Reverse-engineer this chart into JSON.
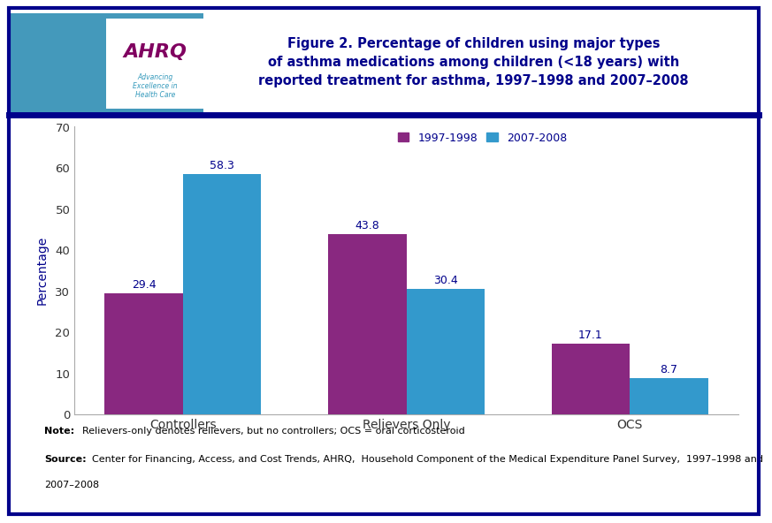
{
  "title": "Figure 2. Percentage of children using major types\nof asthma medications among children (<18 years) with\nreported treatment for asthma, 1997–1998 and 2007–2008",
  "categories": [
    "Controllers",
    "Relievers Only",
    "OCS"
  ],
  "series": [
    {
      "label": "1997-1998",
      "values": [
        29.4,
        43.8,
        17.1
      ],
      "color": "#892880"
    },
    {
      "label": "2007-2008",
      "values": [
        58.3,
        30.4,
        8.7
      ],
      "color": "#3399CC"
    }
  ],
  "ylabel": "Percentage",
  "ylim": [
    0,
    70
  ],
  "yticks": [
    0,
    10,
    20,
    30,
    40,
    50,
    60,
    70
  ],
  "bar_width": 0.35,
  "note_bold": "Note:",
  "note_normal": "  Relievers-only denotes relievers, but no controllers; OCS = oral corticosteroid",
  "source_bold": "Source:",
  "source_normal": "  Center for Financing, Access, and Cost Trends, AHRQ,  Household Component of the Medical Expenditure Panel Survey,  1997–1998 and\n2007–2008",
  "border_color": "#00008B",
  "separator_color": "#00008B",
  "title_color": "#00008B",
  "axis_label_color": "#00008B",
  "tick_label_color": "#333333",
  "value_label_color": "#00008B",
  "legend_label_color": "#00008B",
  "header_left_bg": "#3399BB",
  "header_right_bg": "#FFFFFF"
}
